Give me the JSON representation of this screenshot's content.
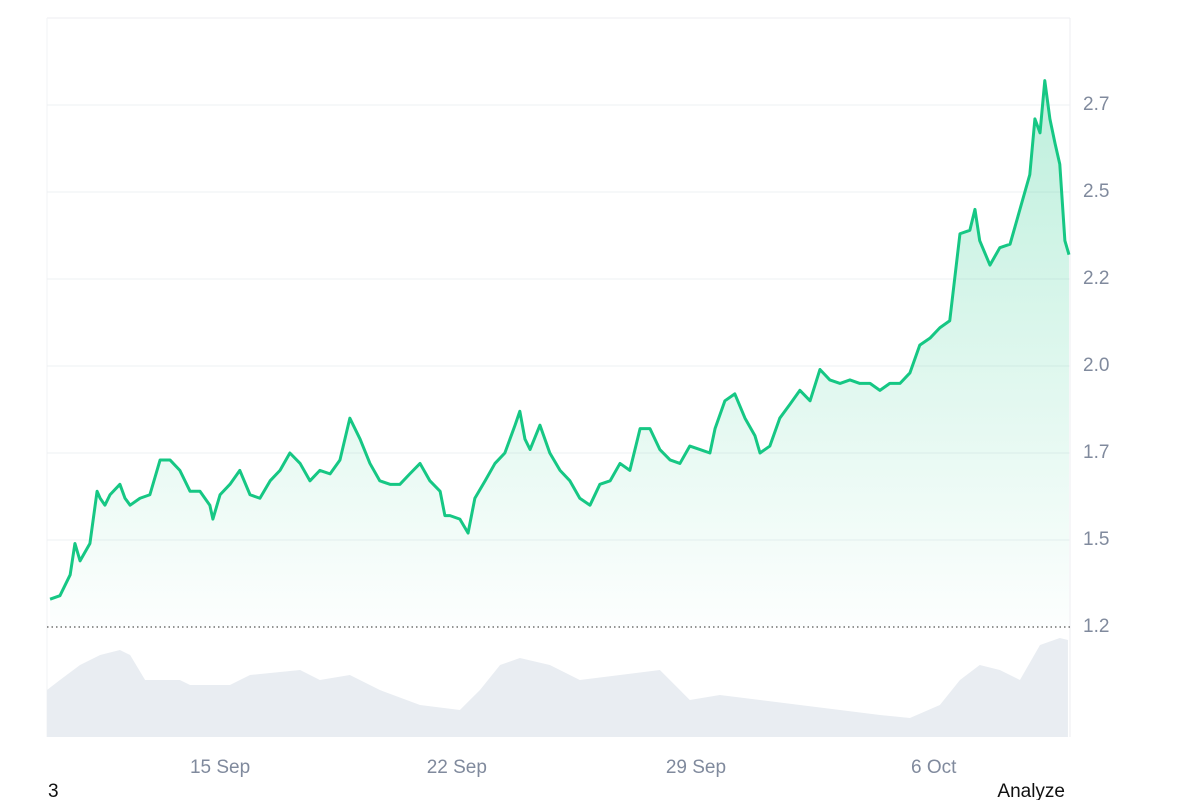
{
  "chart_data": {
    "type": "line",
    "color": "#16c784",
    "grid": true,
    "x": [
      0.09,
      0.38,
      0.68,
      0.82,
      0.97,
      1.26,
      1.47,
      1.56,
      1.7,
      1.85,
      2.14,
      2.29,
      2.44,
      2.73,
      3.02,
      3.32,
      3.61,
      3.9,
      4.2,
      4.49,
      4.78,
      4.87,
      5.08,
      5.37,
      5.66,
      5.96,
      6.25,
      6.55,
      6.84,
      7.13,
      7.43,
      7.72,
      8.01,
      8.31,
      8.6,
      8.89,
      9.19,
      9.48,
      9.77,
      10.07,
      10.36,
      10.65,
      10.95,
      11.24,
      11.54,
      11.68,
      11.83,
      12.12,
      12.36,
      12.56,
      12.86,
      13.15,
      13.44,
      13.74,
      13.88,
      14.03,
      14.18,
      14.47,
      14.76,
      15.06,
      15.35,
      15.64,
      15.94,
      16.23,
      16.53,
      16.82,
      17.11,
      17.41,
      17.7,
      17.99,
      18.29,
      18.58,
      18.87,
      19.17,
      19.46,
      19.61,
      19.9,
      20.19,
      20.49,
      20.78,
      20.93,
      21.22,
      21.51,
      21.81,
      22.1,
      22.4,
      22.69,
      22.98,
      23.28,
      23.57,
      23.86,
      24.16,
      24.45,
      24.74,
      25.04,
      25.33,
      25.62,
      25.92,
      26.21,
      26.5,
      26.8,
      27.09,
      27.24,
      27.38,
      27.68,
      27.97,
      28.27,
      28.56,
      28.85,
      29.0,
      29.15,
      29.29,
      29.44,
      29.59,
      29.73,
      29.88,
      30.0
    ],
    "values": [
      1.33,
      1.34,
      1.4,
      1.49,
      1.44,
      1.49,
      1.64,
      1.62,
      1.6,
      1.63,
      1.66,
      1.62,
      1.6,
      1.62,
      1.63,
      1.73,
      1.73,
      1.7,
      1.64,
      1.64,
      1.6,
      1.56,
      1.63,
      1.66,
      1.7,
      1.63,
      1.62,
      1.67,
      1.7,
      1.75,
      1.72,
      1.67,
      1.7,
      1.69,
      1.73,
      1.85,
      1.79,
      1.72,
      1.67,
      1.66,
      1.66,
      1.69,
      1.72,
      1.67,
      1.64,
      1.57,
      1.57,
      1.56,
      1.52,
      1.62,
      1.67,
      1.72,
      1.75,
      1.83,
      1.87,
      1.79,
      1.76,
      1.83,
      1.75,
      1.7,
      1.67,
      1.62,
      1.6,
      1.66,
      1.67,
      1.72,
      1.7,
      1.82,
      1.82,
      1.76,
      1.73,
      1.72,
      1.77,
      1.76,
      1.75,
      1.82,
      1.9,
      1.92,
      1.85,
      1.8,
      1.75,
      1.77,
      1.85,
      1.89,
      1.93,
      1.9,
      1.99,
      1.96,
      1.95,
      1.96,
      1.95,
      1.95,
      1.93,
      1.95,
      1.95,
      1.98,
      2.06,
      2.08,
      2.11,
      2.13,
      2.38,
      2.39,
      2.45,
      2.36,
      2.29,
      2.34,
      2.35,
      2.45,
      2.55,
      2.71,
      2.67,
      2.82,
      2.71,
      2.64,
      2.58,
      2.36,
      2.32
    ],
    "baseline": 1.25,
    "xlim": [
      0,
      30.03
    ],
    "xticks": [
      {
        "value": 5.08,
        "label": "15 Sep"
      },
      {
        "value": 12.03,
        "label": "22 Sep"
      },
      {
        "value": 19.05,
        "label": "29 Sep"
      },
      {
        "value": 26.03,
        "label": "6 Oct"
      }
    ],
    "ylim": [
      1.25,
      3.0
    ],
    "yticks": [
      {
        "value": 1.25,
        "label": "1.2"
      },
      {
        "value": 1.5,
        "label": "1.5"
      },
      {
        "value": 1.75,
        "label": "1.7"
      },
      {
        "value": 2.0,
        "label": "2.0"
      },
      {
        "value": 2.25,
        "label": "2.2"
      },
      {
        "value": 2.5,
        "label": "2.5"
      },
      {
        "value": 2.75,
        "label": "2.7"
      }
    ],
    "volume": {
      "color": "#e9edf2",
      "ylim": [
        0,
        110
      ],
      "x": [
        0,
        0.38,
        0.97,
        1.56,
        2.14,
        2.44,
        2.88,
        3.9,
        4.2,
        5.37,
        5.96,
        7.43,
        8.01,
        8.89,
        9.77,
        10.95,
        12.12,
        12.71,
        13.3,
        13.88,
        14.76,
        15.64,
        16.82,
        17.99,
        18.87,
        19.75,
        20.93,
        22.1,
        23.28,
        24.45,
        25.33,
        26.21,
        26.8,
        27.38,
        27.97,
        28.56,
        29.15,
        29.73,
        29.97
      ],
      "values": [
        47,
        57,
        72,
        82,
        87,
        82,
        57,
        57,
        52,
        52,
        62,
        67,
        57,
        62,
        47,
        32,
        27,
        47,
        72,
        79,
        72,
        57,
        62,
        67,
        37,
        42,
        37,
        32,
        27,
        22,
        19,
        32,
        57,
        72,
        67,
        57,
        92,
        99,
        97
      ]
    },
    "footer_left": "3",
    "footer_right": "Analyze"
  }
}
